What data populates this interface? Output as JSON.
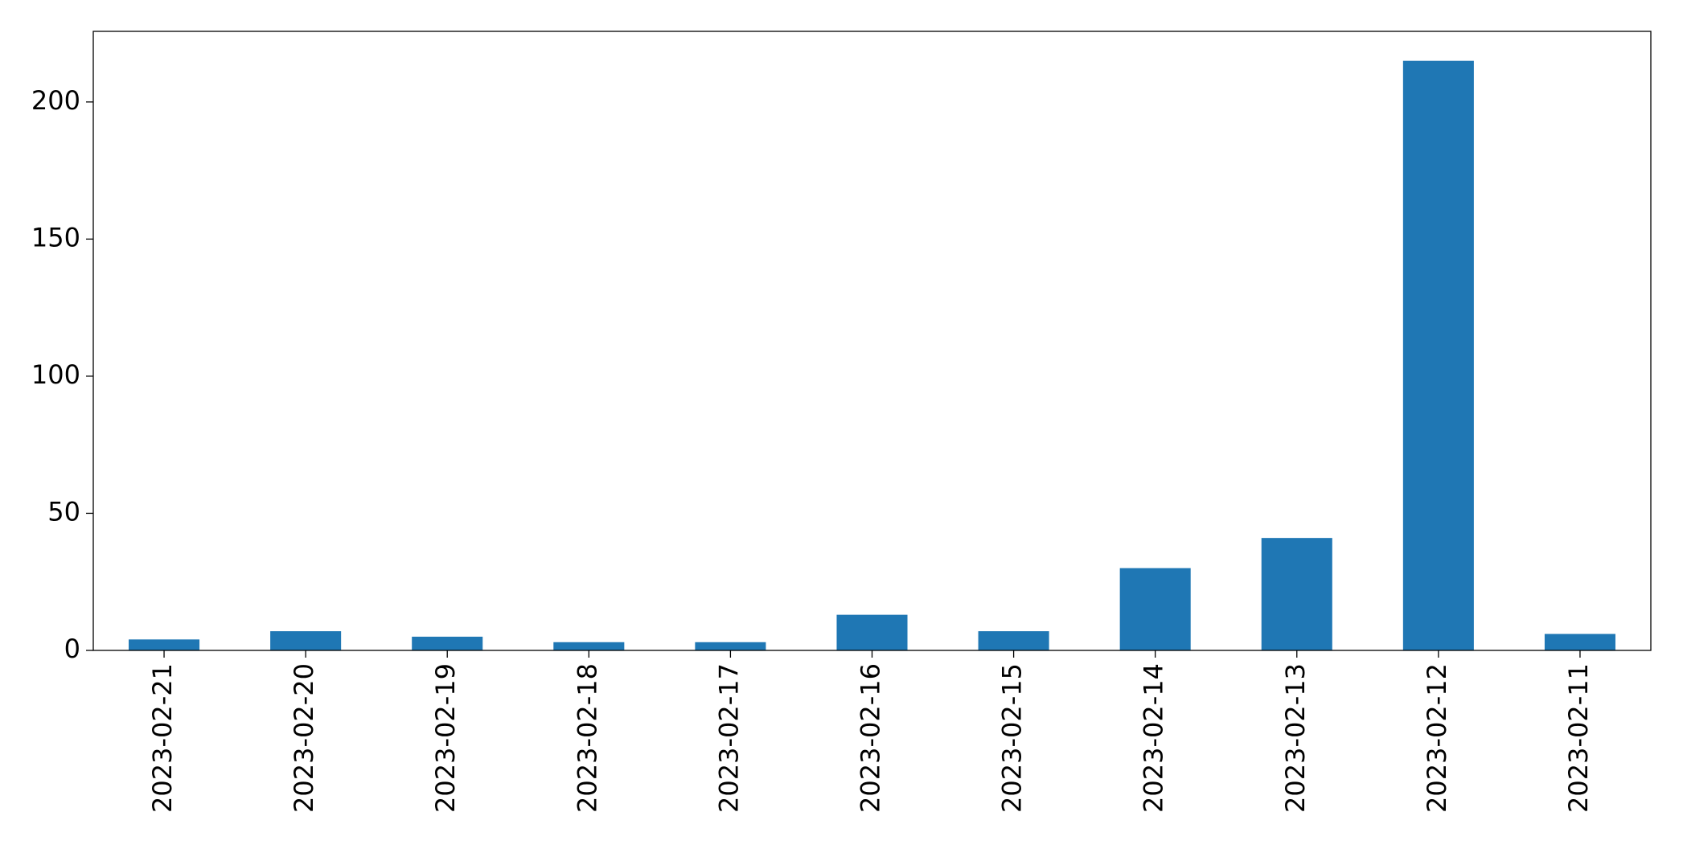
{
  "chart_data": {
    "type": "bar",
    "categories": [
      "2023-02-21",
      "2023-02-20",
      "2023-02-19",
      "2023-02-18",
      "2023-02-17",
      "2023-02-16",
      "2023-02-15",
      "2023-02-14",
      "2023-02-13",
      "2023-02-12",
      "2023-02-11"
    ],
    "values": [
      4,
      7,
      5,
      3,
      3,
      13,
      7,
      30,
      41,
      215,
      6
    ],
    "color": "#1f77b4",
    "ylim": [
      0,
      225.75
    ],
    "yticks": [
      0,
      50,
      100,
      150,
      200
    ],
    "grid": false
  }
}
